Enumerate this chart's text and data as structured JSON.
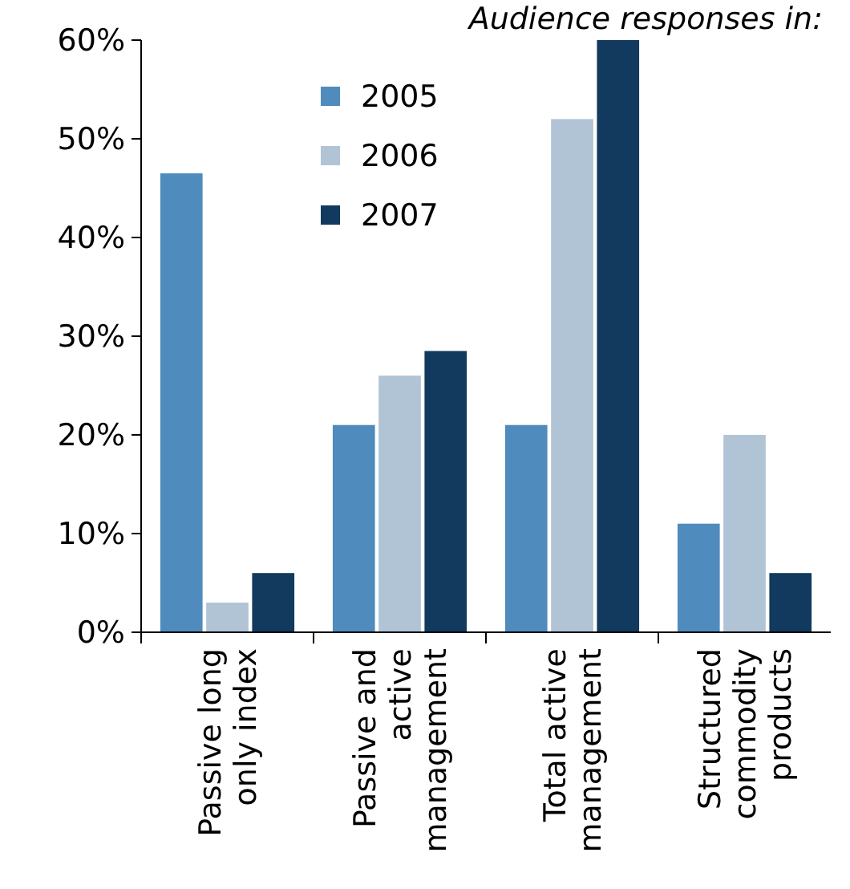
{
  "chart_data": {
    "type": "bar",
    "legend_title": "Audience responses in:",
    "categories": [
      "Passive long only index",
      "Passive and active management",
      "Total active management",
      "Structured commodity products"
    ],
    "series": [
      {
        "name": "2005",
        "color": "#4f8bbd",
        "values": [
          46.5,
          21,
          21,
          11
        ]
      },
      {
        "name": "2006",
        "color": "#b1c4d6",
        "values": [
          3,
          26,
          52,
          20
        ]
      },
      {
        "name": "2007",
        "color": "#12395e",
        "values": [
          6,
          28.5,
          60,
          6
        ]
      }
    ],
    "ylim": [
      0,
      60
    ],
    "yticks": [
      {
        "value": 0,
        "label": "0%"
      },
      {
        "value": 10,
        "label": "10%"
      },
      {
        "value": 20,
        "label": "20%"
      },
      {
        "value": 30,
        "label": "30%"
      },
      {
        "value": 40,
        "label": "40%"
      },
      {
        "value": 50,
        "label": "50%"
      },
      {
        "value": 60,
        "label": "60%"
      }
    ],
    "grid": false,
    "legend": "top left"
  }
}
